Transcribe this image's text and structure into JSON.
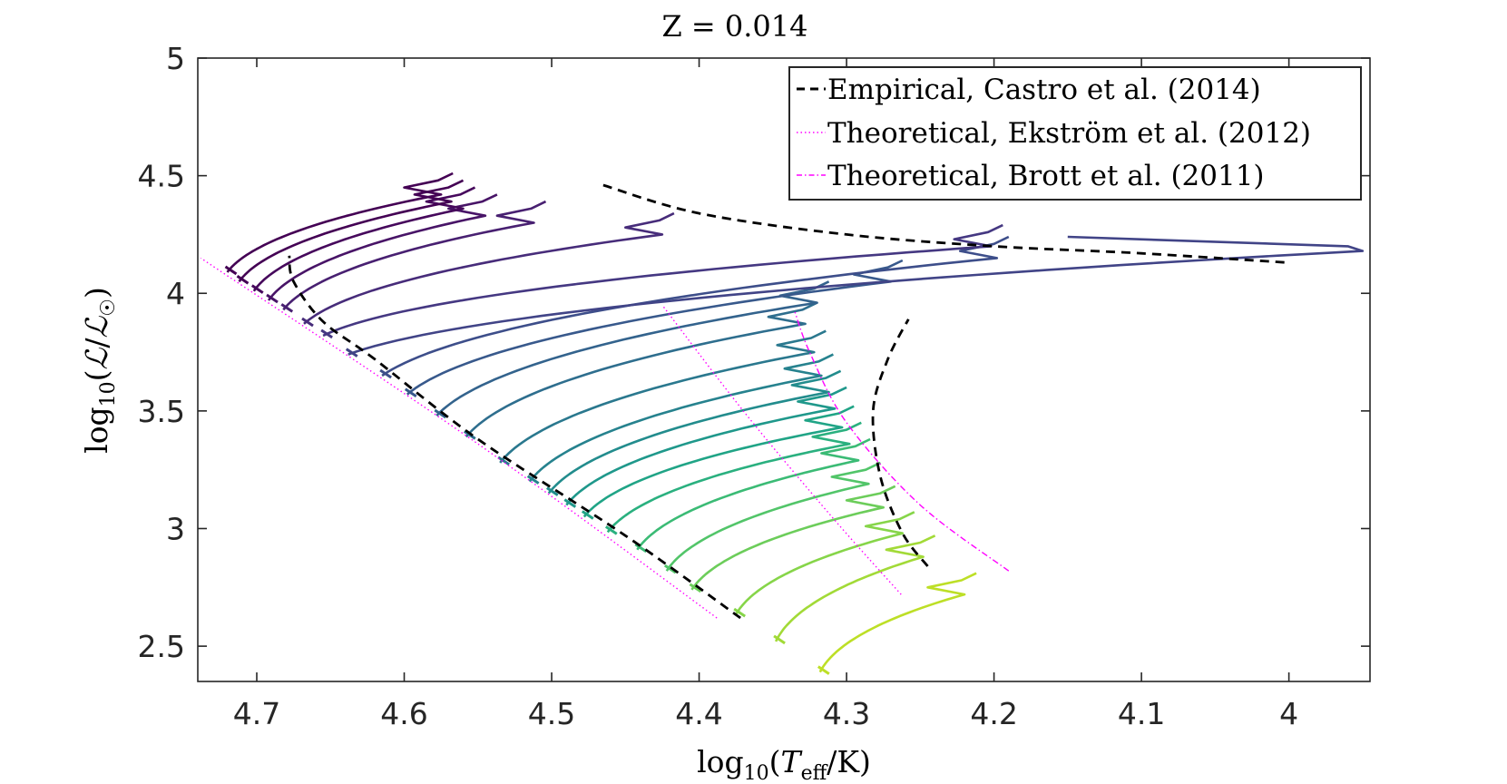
{
  "chart_data": {
    "type": "line",
    "title": "Z = 0.014",
    "xlabel": "log10(Teff/K)",
    "ylabel": "log10(L/L☉)",
    "xlim": [
      4.74,
      3.945
    ],
    "ylim": [
      2.35,
      5.0
    ],
    "x_reversed": true,
    "xticks": [
      4.7,
      4.6,
      4.5,
      4.4,
      4.3,
      4.2,
      4.1,
      4.0
    ],
    "yticks": [
      2.5,
      3.0,
      3.5,
      4.0,
      4.5,
      5.0
    ],
    "xtick_labels": [
      "4.7",
      "4.6",
      "4.5",
      "4.4",
      "4.3",
      "4.2",
      "4.1",
      "4"
    ],
    "ytick_labels": [
      "2.5",
      "3",
      "3.5",
      "4",
      "4.5",
      "5"
    ],
    "legend_position": "top-right",
    "legend": [
      {
        "label": "Empirical, Castro et al. (2014)",
        "style": "dashed",
        "color": "#000000"
      },
      {
        "label": "Theoretical, Ekström et al. (2012)",
        "style": "dotted",
        "color": "#ff00ff"
      },
      {
        "label": "Theoretical, Brott et al. (2011)",
        "style": "dashdot",
        "color": "#ff00ff"
      }
    ],
    "reference_curves": [
      {
        "name": "Castro ZAMS",
        "style": "dashed",
        "color": "#000000",
        "points": [
          [
            4.372,
            2.62
          ],
          [
            4.45,
            2.97
          ],
          [
            4.55,
            3.38
          ],
          [
            4.62,
            3.72
          ],
          [
            4.655,
            3.88
          ],
          [
            4.675,
            4.05
          ],
          [
            4.678,
            4.16
          ]
        ]
      },
      {
        "name": "Castro TAMS",
        "style": "dashed",
        "color": "#000000",
        "points": [
          [
            4.465,
            4.46
          ],
          [
            4.4,
            4.34
          ],
          [
            4.3,
            4.25
          ],
          [
            4.2,
            4.2
          ],
          [
            4.1,
            4.17
          ],
          [
            4.0,
            4.13
          ]
        ]
      },
      {
        "name": "Castro cool branch",
        "style": "dashed",
        "color": "#000000",
        "points": [
          [
            4.245,
            2.84
          ],
          [
            4.262,
            2.98
          ],
          [
            4.277,
            3.22
          ],
          [
            4.282,
            3.5
          ],
          [
            4.272,
            3.72
          ],
          [
            4.258,
            3.89
          ]
        ]
      },
      {
        "name": "Ekström ZAMS",
        "style": "dotted",
        "color": "#ff00ff",
        "points": [
          [
            4.388,
            2.62
          ],
          [
            4.55,
            3.36
          ],
          [
            4.738,
            4.15
          ]
        ]
      },
      {
        "name": "Ekström TAMS",
        "style": "dotted",
        "color": "#ff00ff",
        "points": [
          [
            4.263,
            2.72
          ],
          [
            4.31,
            3.05
          ],
          [
            4.37,
            3.5
          ],
          [
            4.425,
            3.95
          ]
        ]
      },
      {
        "name": "Brott TAMS",
        "style": "dashdot",
        "color": "#ff00ff",
        "points": [
          [
            4.19,
            2.82
          ],
          [
            4.25,
            3.1
          ],
          [
            4.3,
            3.45
          ],
          [
            4.325,
            3.75
          ],
          [
            4.335,
            3.92
          ]
        ]
      }
    ],
    "series": [
      {
        "name": "track 1",
        "zams": [
          4.318,
          2.39
        ],
        "tams": [
          4.22,
          2.72
        ],
        "color": "#bddf26"
      },
      {
        "name": "track 2",
        "zams": [
          4.348,
          2.52
        ],
        "tams": [
          4.248,
          2.88
        ],
        "color": "#a2da37"
      },
      {
        "name": "track 3",
        "zams": [
          4.375,
          2.635
        ],
        "tams": [
          4.262,
          2.98
        ],
        "color": "#86d549"
      },
      {
        "name": "track 4",
        "zams": [
          4.405,
          2.74
        ],
        "tams": [
          4.275,
          3.09
        ],
        "color": "#6ccd5a"
      },
      {
        "name": "track 5",
        "zams": [
          4.422,
          2.82
        ],
        "tams": [
          4.285,
          3.19
        ],
        "color": "#52c569"
      },
      {
        "name": "track 6",
        "zams": [
          4.442,
          2.91
        ],
        "tams": [
          4.292,
          3.29
        ],
        "color": "#3bbb75"
      },
      {
        "name": "track 7",
        "zams": [
          4.462,
          2.985
        ],
        "tams": [
          4.298,
          3.36
        ],
        "color": "#2ab07f"
      },
      {
        "name": "track 8",
        "zams": [
          4.478,
          3.05
        ],
        "tams": [
          4.303,
          3.43
        ],
        "color": "#20a486"
      },
      {
        "name": "track 9",
        "zams": [
          4.49,
          3.1
        ],
        "tams": [
          4.308,
          3.51
        ],
        "color": "#1f988b"
      },
      {
        "name": "track 10",
        "zams": [
          4.502,
          3.15
        ],
        "tams": [
          4.312,
          3.58
        ],
        "color": "#228c8d"
      },
      {
        "name": "track 11",
        "zams": [
          4.515,
          3.2
        ],
        "tams": [
          4.317,
          3.65
        ],
        "color": "#26828e"
      },
      {
        "name": "track 12",
        "zams": [
          4.535,
          3.28
        ],
        "tams": [
          4.322,
          3.75
        ],
        "color": "#2a788e"
      },
      {
        "name": "track 13",
        "zams": [
          4.558,
          3.39
        ],
        "tams": [
          4.328,
          3.87
        ],
        "color": "#2e6e8e"
      },
      {
        "name": "track 14",
        "zams": [
          4.578,
          3.48
        ],
        "tams": [
          4.32,
          3.96
        ],
        "color": "#33638d"
      },
      {
        "name": "track 15",
        "zams": [
          4.598,
          3.57
        ],
        "tams": [
          4.27,
          4.05
        ],
        "color": "#38598c"
      },
      {
        "name": "track 16",
        "zams": [
          4.615,
          3.65
        ],
        "tams": [
          4.198,
          4.15
        ],
        "color": "#3d4e8a"
      },
      {
        "name": "track 17",
        "zams": [
          4.638,
          3.74
        ],
        "tams": [
          3.95,
          4.18
        ],
        "color": "#414487"
      },
      {
        "name": "track 18",
        "zams": [
          4.655,
          3.82
        ],
        "tams": [
          4.202,
          4.2
        ],
        "color": "#453882"
      },
      {
        "name": "track 19",
        "zams": [
          4.668,
          3.87
        ],
        "tams": [
          4.425,
          4.25
        ],
        "color": "#472c7a"
      },
      {
        "name": "track 20",
        "zams": [
          4.682,
          3.93
        ],
        "tams": [
          4.512,
          4.3
        ],
        "color": "#482071"
      },
      {
        "name": "track 21",
        "zams": [
          4.692,
          3.97
        ],
        "tams": [
          4.545,
          4.33
        ],
        "color": "#481467"
      },
      {
        "name": "track 22",
        "zams": [
          4.702,
          4.01
        ],
        "tams": [
          4.56,
          4.36
        ],
        "color": "#46085c"
      },
      {
        "name": "track 23",
        "zams": [
          4.712,
          4.05
        ],
        "tams": [
          4.568,
          4.39
        ],
        "color": "#440154"
      },
      {
        "name": "track 24",
        "zams": [
          4.72,
          4.09
        ],
        "tams": [
          4.575,
          4.42
        ],
        "color": "#440154"
      }
    ]
  }
}
